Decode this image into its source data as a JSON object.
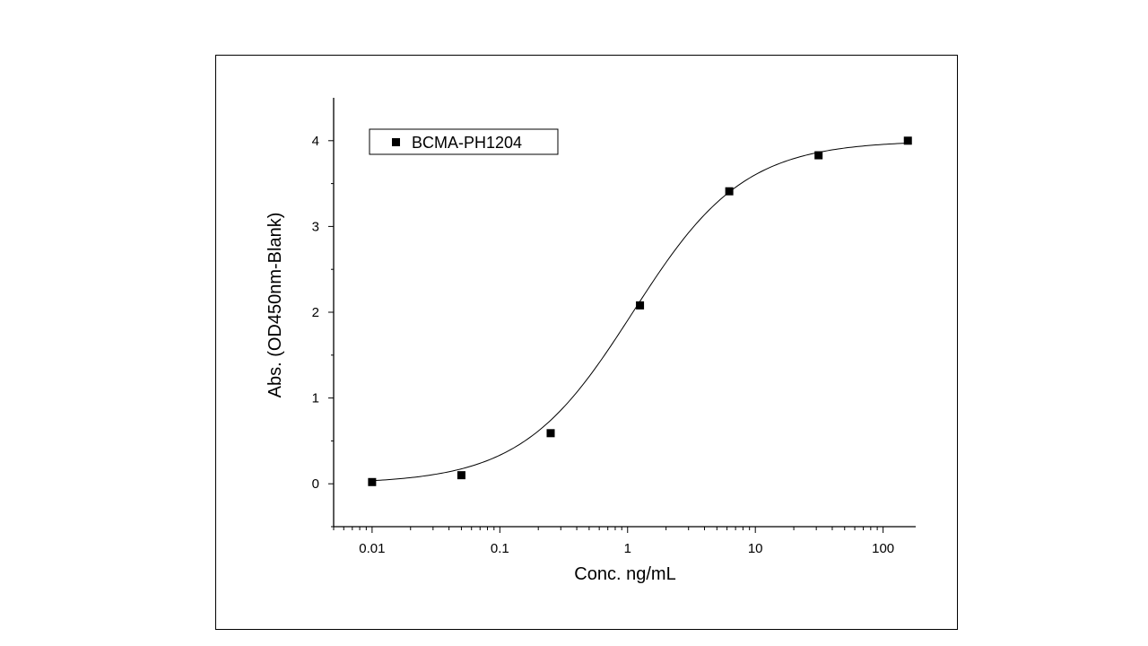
{
  "chart_data": {
    "type": "scatter",
    "xlabel": "Conc. ng/mL",
    "ylabel": "Abs. (OD450nm-Blank)",
    "xscale": "log",
    "xlim": [
      0.005,
      180
    ],
    "ylim": [
      -0.5,
      4.5
    ],
    "x_ticks": [
      0.01,
      0.1,
      1,
      10,
      100
    ],
    "x_tick_labels": [
      "0.01",
      "0.1",
      "1",
      "10",
      "100"
    ],
    "y_ticks": [
      0,
      1,
      2,
      3,
      4
    ],
    "y_tick_labels": [
      "0",
      "1",
      "2",
      "3",
      "4"
    ],
    "legend_position": "top-left",
    "marker": "square",
    "fit": "four-parameter logistic curve",
    "series": [
      {
        "name": "BCMA-PH1204",
        "x": [
          0.01,
          0.05,
          0.25,
          1.25,
          6.25,
          31.25,
          156.25
        ],
        "y": [
          0.02,
          0.1,
          0.59,
          2.08,
          3.41,
          3.83,
          4.0
        ]
      }
    ],
    "colors": {
      "marker": "#000000",
      "curve": "#000000"
    }
  }
}
